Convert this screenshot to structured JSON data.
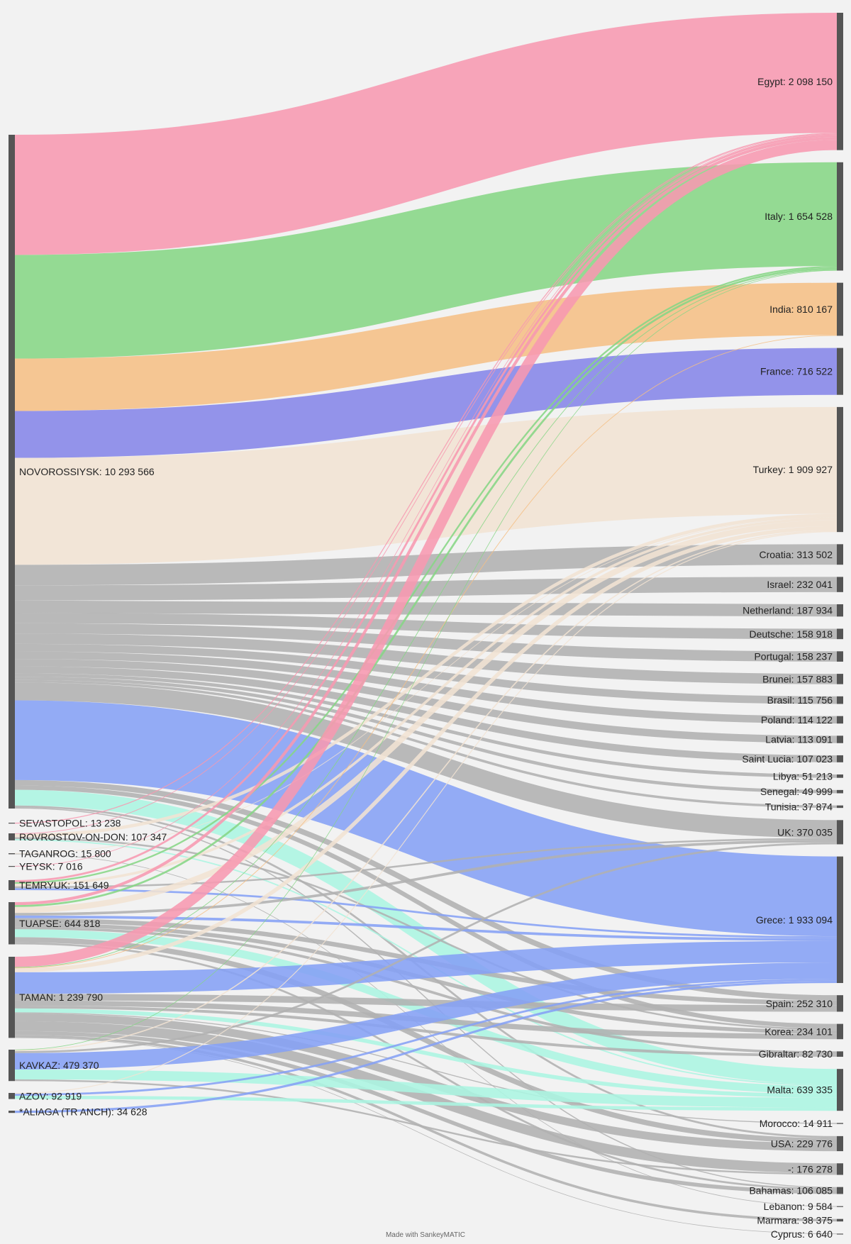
{
  "chart_data": {
    "type": "sankey",
    "title": "",
    "colors": {
      "node": "#555555",
      "grey": "#b0b0b0"
    },
    "sources": [
      {
        "name": "NOVOROSSIYSK",
        "label": "NOVOROSSIYSK: 10 293 566",
        "value": 10293566
      },
      {
        "name": "SEVASTOPOL",
        "label": "SEVASTOPOL: 13 238",
        "value": 13238
      },
      {
        "name": "ROVROSTOV-ON-DON",
        "label": "ROVROSTOV-ON-DON: 107 347",
        "value": 107347
      },
      {
        "name": "TAGANROG",
        "label": "TAGANROG: 15 800",
        "value": 15800
      },
      {
        "name": "YEYSK",
        "label": "YEYSK: 7 016",
        "value": 7016
      },
      {
        "name": "TEMRYUK",
        "label": "TEMRYUK: 151 649",
        "value": 151649
      },
      {
        "name": "TUAPSE",
        "label": "TUAPSE: 644 818",
        "value": 644818
      },
      {
        "name": "TAMAN",
        "label": "TAMAN: 1 239 790",
        "value": 1239790
      },
      {
        "name": "KAVKAZ",
        "label": "KAVKAZ: 479 370",
        "value": 479370
      },
      {
        "name": "AZOV",
        "label": "AZOV: 92 919",
        "value": 92919
      },
      {
        "name": "*ALIAGA (TR ANCH)",
        "label": "*ALIAGA (TR ANCH): 34 628",
        "value": 34628
      }
    ],
    "targets": [
      {
        "name": "Egypt",
        "label": "Egypt: 2 098 150",
        "value": 2098150,
        "color": "#f799b0"
      },
      {
        "name": "Italy",
        "label": "Italy: 1 654 528",
        "value": 1654528,
        "color": "#86d685"
      },
      {
        "name": "India",
        "label": "India: 810 167",
        "value": 810167,
        "color": "#f5bf85"
      },
      {
        "name": "France",
        "label": "France: 716 522",
        "value": 716522,
        "color": "#8585e8"
      },
      {
        "name": "Turkey",
        "label": "Turkey: 1 909 927",
        "value": 1909927,
        "color": "#f1e3d3"
      },
      {
        "name": "Croatia",
        "label": "Croatia: 313 502",
        "value": 313502,
        "color": "#b0b0b0"
      },
      {
        "name": "Israel",
        "label": "Israel: 232 041",
        "value": 232041,
        "color": "#b0b0b0"
      },
      {
        "name": "Netherland",
        "label": "Netherland: 187 934",
        "value": 187934,
        "color": "#b0b0b0"
      },
      {
        "name": "Deutsche",
        "label": "Deutsche: 158 918",
        "value": 158918,
        "color": "#b0b0b0"
      },
      {
        "name": "Portugal",
        "label": "Portugal: 158 237",
        "value": 158237,
        "color": "#b0b0b0"
      },
      {
        "name": "Brunei",
        "label": "Brunei: 157 883",
        "value": 157883,
        "color": "#b0b0b0"
      },
      {
        "name": "Brasil",
        "label": "Brasil: 115 756",
        "value": 115756,
        "color": "#b0b0b0"
      },
      {
        "name": "Poland",
        "label": "Poland: 114 122",
        "value": 114122,
        "color": "#b0b0b0"
      },
      {
        "name": "Latvia",
        "label": "Latvia: 113 091",
        "value": 113091,
        "color": "#b0b0b0"
      },
      {
        "name": "Saint Lucia",
        "label": "Saint Lucia: 107 023",
        "value": 107023,
        "color": "#b0b0b0"
      },
      {
        "name": "Libya",
        "label": "Libya: 51 213",
        "value": 51213,
        "color": "#b0b0b0"
      },
      {
        "name": "Senegal",
        "label": "Senegal: 49 999",
        "value": 49999,
        "color": "#b0b0b0"
      },
      {
        "name": "Tunisia",
        "label": "Tunisia: 37 874",
        "value": 37874,
        "color": "#b0b0b0"
      },
      {
        "name": "UK",
        "label": "UK: 370 035",
        "value": 370035,
        "color": "#b0b0b0"
      },
      {
        "name": "Grece",
        "label": "Grece: 1 933 094",
        "value": 1933094,
        "color": "#85a1f5"
      },
      {
        "name": "Spain",
        "label": "Spain: 252 310",
        "value": 252310,
        "color": "#b0b0b0"
      },
      {
        "name": "Korea",
        "label": "Korea: 234 101",
        "value": 234101,
        "color": "#b0b0b0"
      },
      {
        "name": "Gibraltar",
        "label": "Gibraltar: 82 730",
        "value": 82730,
        "color": "#b0b0b0"
      },
      {
        "name": "Malta",
        "label": "Malta: 639 335",
        "value": 639335,
        "color": "#abf5e1"
      },
      {
        "name": "Morocco",
        "label": "Morocco: 14 911",
        "value": 14911,
        "color": "#b0b0b0"
      },
      {
        "name": "USA",
        "label": "USA: 229 776",
        "value": 229776,
        "color": "#b0b0b0"
      },
      {
        "name": "-",
        "label": "-: 176 278",
        "value": 176278,
        "color": "#b0b0b0"
      },
      {
        "name": "Bahamas",
        "label": "Bahamas: 106 085",
        "value": 106085,
        "color": "#b0b0b0"
      },
      {
        "name": "Lebanon",
        "label": "Lebanon: 9 584",
        "value": 9584,
        "color": "#b0b0b0"
      },
      {
        "name": "Marmara",
        "label": "Marmara: 38 375",
        "value": 38375,
        "color": "#b0b0b0"
      },
      {
        "name": "Cyprus",
        "label": "Cyprus: 6 640",
        "value": 6640,
        "color": "#b0b0b0"
      }
    ],
    "flows_estimated": {
      "SEVASTOPOL": {
        "Egypt": 13238
      },
      "ROVROSTOV-ON-DON": {
        "Egypt": 10000,
        "Turkey": 50000,
        "Malta": 20000,
        "Korea": 27347
      },
      "TAGANROG": {
        "Turkey": 6216,
        "Lebanon": 9584
      },
      "YEYSK": {
        "Egypt": 7016
      },
      "TEMRYUK": {
        "Egypt": 30000,
        "Italy": 25000,
        "Turkey": 40000,
        "UK": 26649,
        "Grece": 30000
      },
      "TUAPSE": {
        "Egypt": 44818,
        "Italy": 30000,
        "Turkey": 90000,
        "UK": 40000,
        "Grece": 40000,
        "Spain": 70000,
        "Korea": 60000,
        "Gibraltar": 40000,
        "Malta": 120000,
        "USA": 80000,
        "Bahamas": 30000
      },
      "TAMAN": {
        "Egypt": 157134,
        "Italy": 10000,
        "India": 10000,
        "Turkey": 60000,
        "Grece": 330000,
        "Spain": 100000,
        "Korea": 80000,
        "Gibraltar": 42730,
        "Malta": 60000,
        "Morocco": 14911,
        "USA": 120000,
        "-": 150000,
        "Bahamas": 60000,
        "Marmara": 38375,
        "Cyprus": 6640
      },
      "KAVKAZ": {
        "Italy": 5000,
        "Turkey": 18092,
        "UK": 30000,
        "Grece": 250000,
        "Malta": 150000,
        "-": 26278
      },
      "AZOV": {
        "Turkey": 12919,
        "Grece": 30000,
        "Malta": 50000
      },
      "*ALIAGA (TR ANCH)": {
        "Grece": 34628
      },
      "NOVOROSSIYSK": "remainder"
    }
  },
  "footer": "Made with SankeyMATIC"
}
